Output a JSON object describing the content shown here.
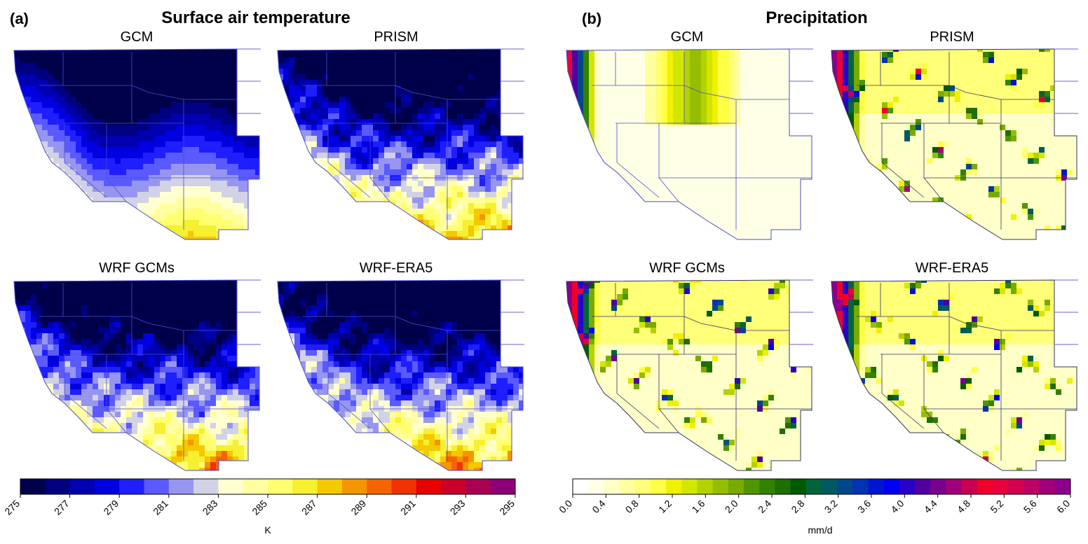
{
  "figure": {
    "panel_a": {
      "letter": "(a)",
      "title": "Surface air temperature",
      "maps": [
        "GCM",
        "PRISM",
        "WRF GCMs",
        "WRF-ERA5"
      ]
    },
    "panel_b": {
      "letter": "(b)",
      "title": "Precipitation",
      "maps": [
        "GCM",
        "PRISM",
        "WRF GCMs",
        "WRF-ERA5"
      ]
    }
  },
  "chart_data": [
    {
      "type": "heatmap",
      "panel": "(a)",
      "title": "Surface air temperature",
      "colorbar": {
        "unit": "K",
        "range": [
          275,
          295
        ],
        "tick_labels": [
          "275",
          "277",
          "279",
          "281",
          "283",
          "285",
          "287",
          "289",
          "291",
          "293",
          "295"
        ],
        "colors": [
          "#00004a",
          "#000080",
          "#0000b0",
          "#0000e0",
          "#1e1eff",
          "#5a5aff",
          "#9696f0",
          "#d2d2e6",
          "#ffffd0",
          "#ffffa0",
          "#ffff70",
          "#f5f030",
          "#f5c800",
          "#f59600",
          "#f56400",
          "#f03200",
          "#e60000",
          "#c80028",
          "#aa0050",
          "#8c0078"
        ]
      },
      "maps": [
        {
          "name": "GCM"
        },
        {
          "name": "PRISM"
        },
        {
          "name": "WRF GCMs"
        },
        {
          "name": "WRF-ERA5"
        }
      ]
    },
    {
      "type": "heatmap",
      "panel": "(b)",
      "title": "Precipitation",
      "colorbar": {
        "unit": "mm/d",
        "range": [
          0.0,
          6.0
        ],
        "tick_labels": [
          "0.0",
          "0.4",
          "0.8",
          "1.2",
          "1.6",
          "2.0",
          "2.4",
          "2.8",
          "3.2",
          "3.6",
          "4.0",
          "4.4",
          "4.8",
          "5.2",
          "5.6",
          "6.0"
        ],
        "colors": [
          "#ffffff",
          "#ffffe6",
          "#ffffc8",
          "#ffffa0",
          "#ffff78",
          "#ffff46",
          "#f0f000",
          "#d2e600",
          "#b4d200",
          "#96be00",
          "#78aa00",
          "#509600",
          "#328200",
          "#1e6e00",
          "#005a00",
          "#00643c",
          "#005a64",
          "#00468c",
          "#0032b4",
          "#0014d2",
          "#0000f0",
          "#2800c8",
          "#5000a0",
          "#78008c",
          "#a00078",
          "#c80050",
          "#f00028",
          "#e6003c",
          "#d20050",
          "#be0064",
          "#a00078",
          "#8c008c"
        ]
      },
      "maps": [
        {
          "name": "GCM"
        },
        {
          "name": "PRISM"
        },
        {
          "name": "WRF GCMs"
        },
        {
          "name": "WRF-ERA5"
        }
      ]
    }
  ]
}
